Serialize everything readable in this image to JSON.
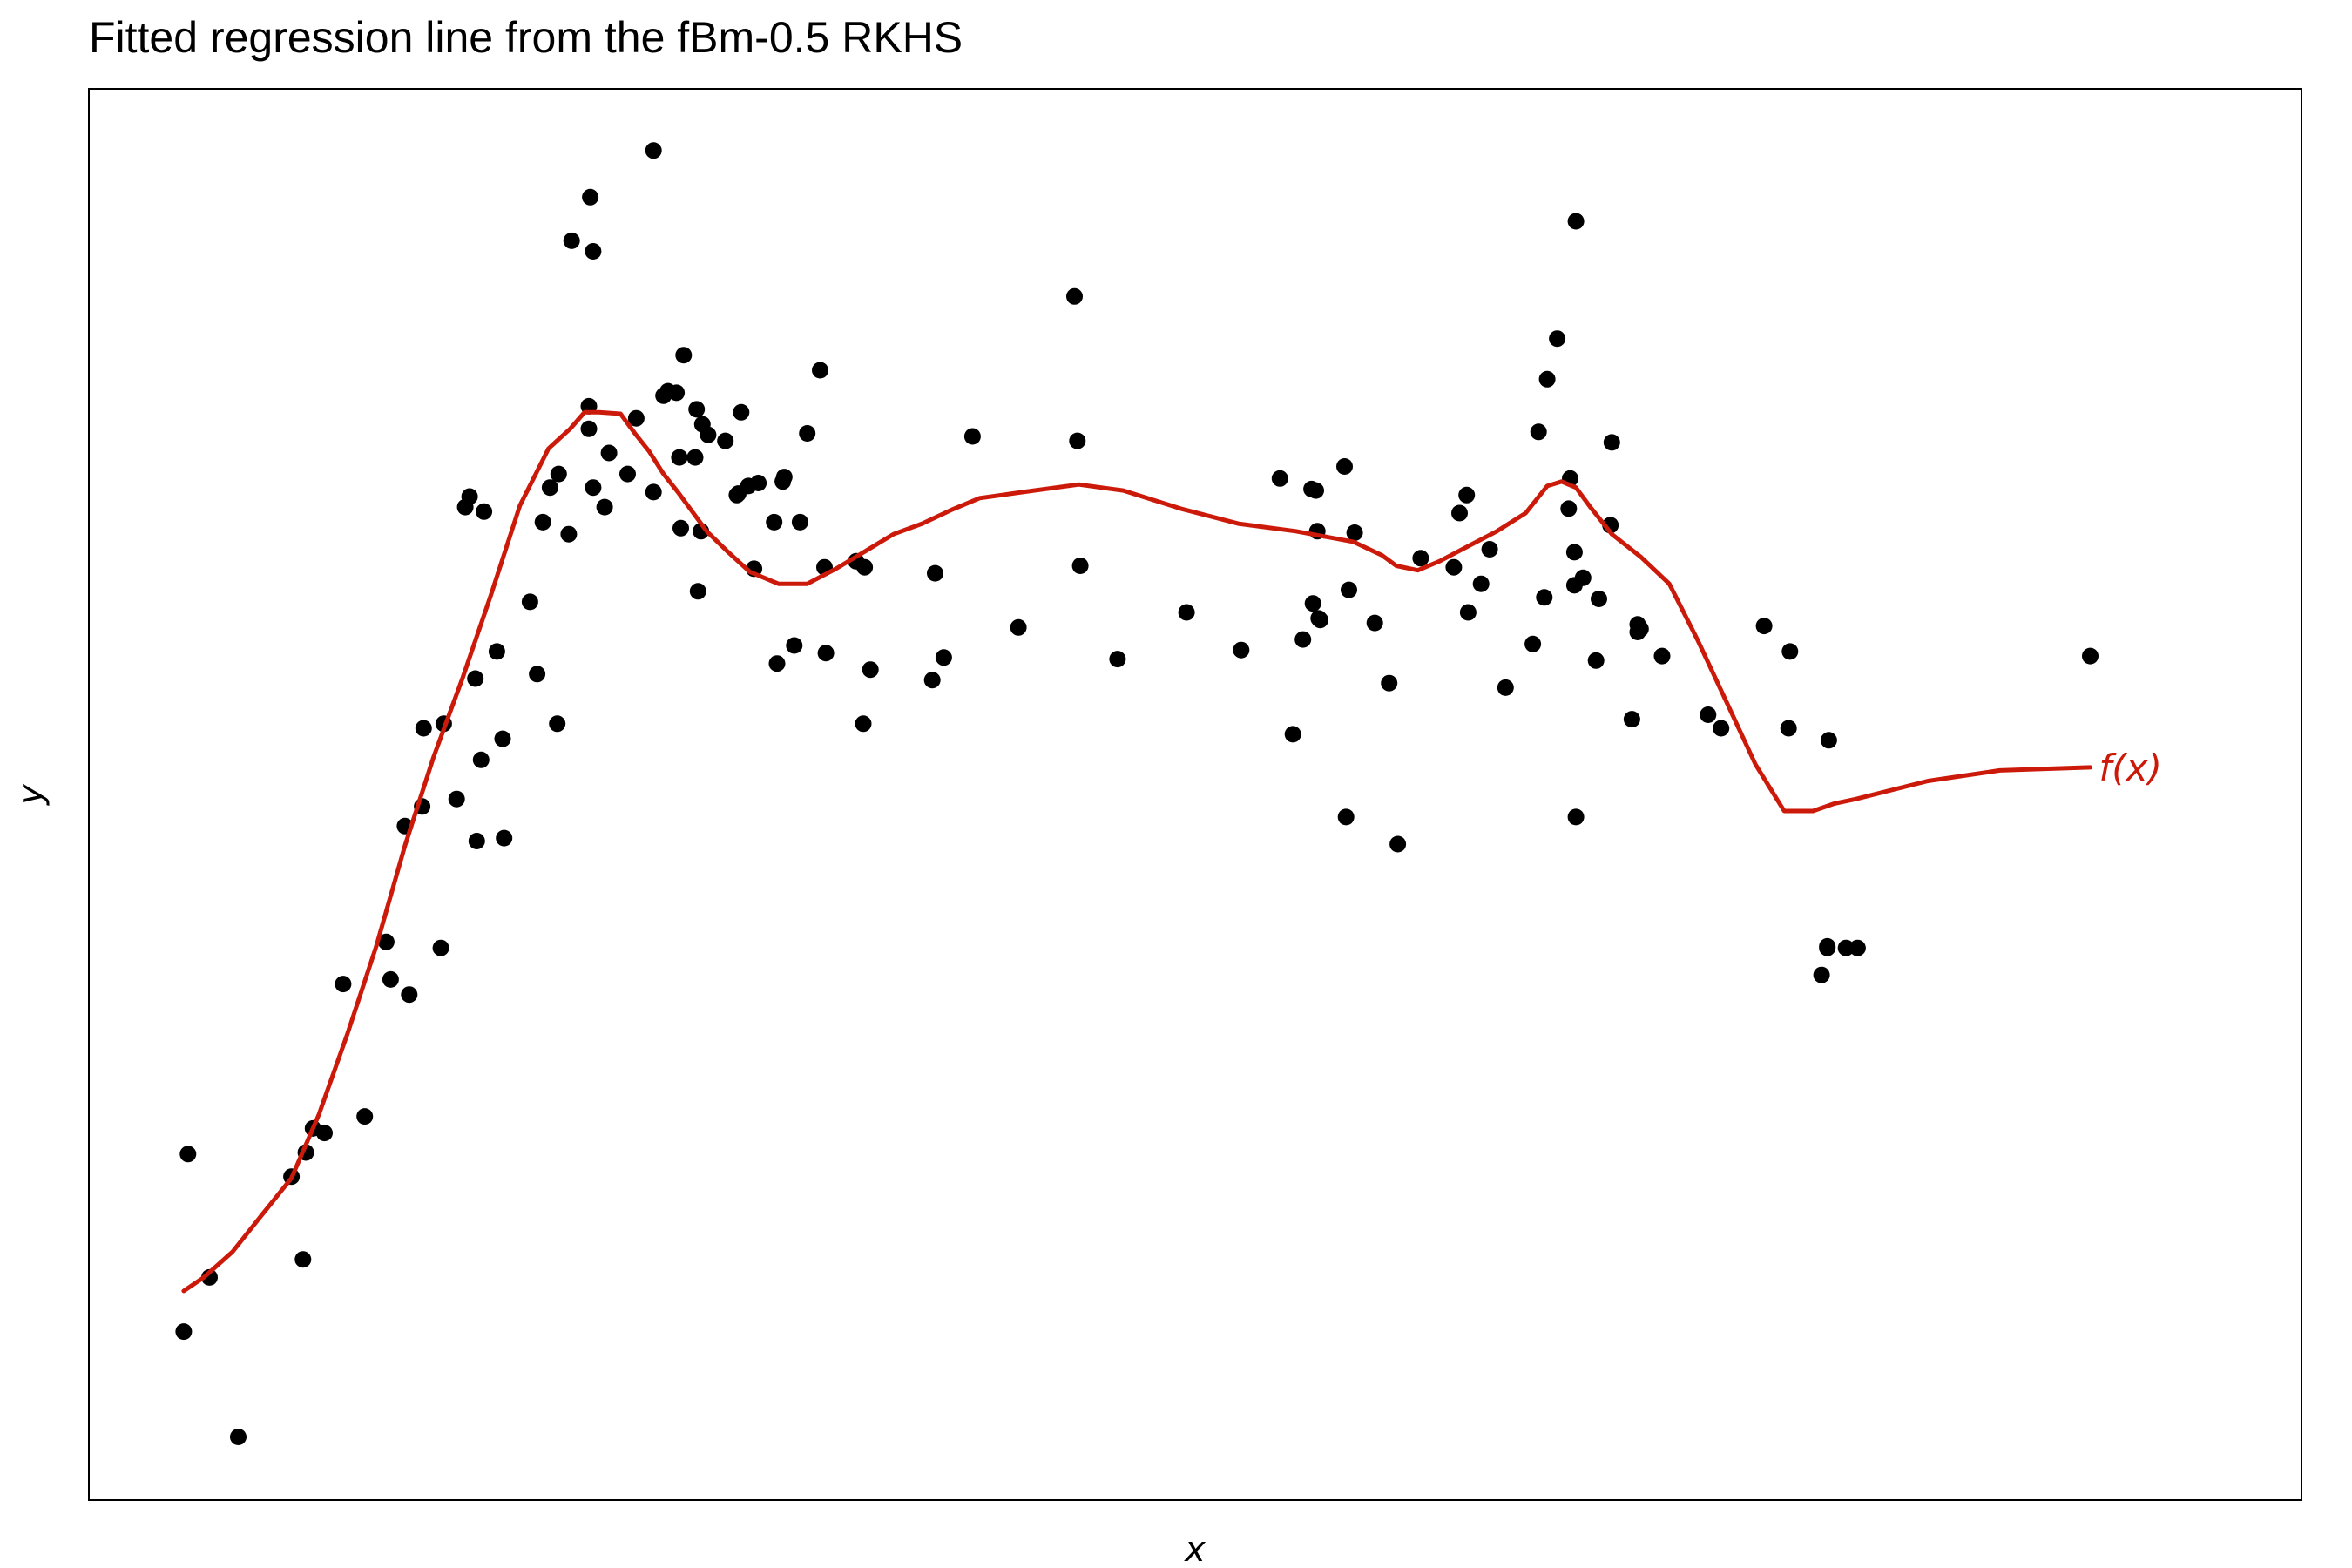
{
  "chart_data": {
    "type": "scatter",
    "title": "Fitted regression line from the fBm-0.5 RKHS",
    "xlabel": "x",
    "ylabel": "y",
    "xlim": [
      0,
      1540
    ],
    "ylim": [
      -938,
      0
    ],
    "grid": false,
    "axis_ticks": false,
    "colors": {
      "points": "#000000",
      "fit": "#cc1a0a",
      "frame": "#000000",
      "background": "#ffffff"
    },
    "points": [
      [
        66,
        -826
      ],
      [
        69,
        -708
      ],
      [
        84,
        -790
      ],
      [
        104,
        -896
      ],
      [
        141,
        -723
      ],
      [
        149,
        -778
      ],
      [
        151,
        -707
      ],
      [
        156,
        -691
      ],
      [
        164,
        -694
      ],
      [
        177,
        -595
      ],
      [
        192,
        -683
      ],
      [
        207,
        -567
      ],
      [
        210,
        -592
      ],
      [
        220,
        -490
      ],
      [
        223,
        -602
      ],
      [
        232,
        -477
      ],
      [
        233,
        -425
      ],
      [
        245,
        -571
      ],
      [
        247,
        -422
      ],
      [
        256,
        -472
      ],
      [
        262,
        -278
      ],
      [
        265,
        -271
      ],
      [
        269,
        -392
      ],
      [
        270,
        -500
      ],
      [
        273,
        -446
      ],
      [
        275,
        -281
      ],
      [
        284,
        -374
      ],
      [
        288,
        -432
      ],
      [
        289,
        -498
      ],
      [
        307,
        -341
      ],
      [
        312,
        -389
      ],
      [
        316,
        -288
      ],
      [
        321,
        -265
      ],
      [
        326,
        -422
      ],
      [
        327,
        -256
      ],
      [
        334,
        -296
      ],
      [
        336,
        -101
      ],
      [
        348,
        -211
      ],
      [
        348,
        -226
      ],
      [
        349,
        -72
      ],
      [
        351,
        -265
      ],
      [
        351,
        -108
      ],
      [
        359,
        -278
      ],
      [
        362,
        -242
      ],
      [
        375,
        -256
      ],
      [
        381,
        -219
      ],
      [
        393,
        -268
      ],
      [
        393,
        -41
      ],
      [
        400,
        -204
      ],
      [
        403,
        -201
      ],
      [
        409,
        -202
      ],
      [
        411,
        -245
      ],
      [
        412,
        -292
      ],
      [
        414,
        -177
      ],
      [
        423,
        -213
      ],
      [
        422,
        -245
      ],
      [
        424,
        -334
      ],
      [
        426,
        -294
      ],
      [
        427,
        -223
      ],
      [
        431,
        -230
      ],
      [
        443,
        -234
      ],
      [
        451,
        -270
      ],
      [
        452,
        -269
      ],
      [
        454,
        -215
      ],
      [
        459,
        -264
      ],
      [
        463,
        -319
      ],
      [
        466,
        -262
      ],
      [
        477,
        -288
      ],
      [
        479,
        -382
      ],
      [
        483,
        -261
      ],
      [
        484,
        -258
      ],
      [
        491,
        -370
      ],
      [
        495,
        -288
      ],
      [
        500,
        -229
      ],
      [
        509,
        -187
      ],
      [
        512,
        -318
      ],
      [
        513,
        -375
      ],
      [
        534,
        -314
      ],
      [
        540,
        -318
      ],
      [
        539,
        -422
      ],
      [
        544,
        -386
      ],
      [
        587,
        -393
      ],
      [
        589,
        -322
      ],
      [
        595,
        -378
      ],
      [
        615,
        -231
      ],
      [
        647,
        -358
      ],
      [
        686,
        -138
      ],
      [
        688,
        -234
      ],
      [
        690,
        -317
      ],
      [
        716,
        -379
      ],
      [
        764,
        -348
      ],
      [
        802,
        -373
      ],
      [
        829,
        -259
      ],
      [
        838,
        -429
      ],
      [
        845,
        -366
      ],
      [
        851,
        -266
      ],
      [
        852,
        -342
      ],
      [
        854,
        -267
      ],
      [
        855,
        -294
      ],
      [
        856,
        -352
      ],
      [
        857,
        -353
      ],
      [
        874,
        -251
      ],
      [
        875,
        -484
      ],
      [
        877,
        -333
      ],
      [
        881,
        -295
      ],
      [
        895,
        -355
      ],
      [
        905,
        -395
      ],
      [
        911,
        -502
      ],
      [
        927,
        -312
      ],
      [
        950,
        -318
      ],
      [
        954,
        -282
      ],
      [
        959,
        -270
      ],
      [
        960,
        -348
      ],
      [
        969,
        -329
      ],
      [
        975,
        -306
      ],
      [
        986,
        -398
      ],
      [
        1005,
        -369
      ],
      [
        1009,
        -228
      ],
      [
        1013,
        -338
      ],
      [
        1015,
        -193
      ],
      [
        1022,
        -166
      ],
      [
        1030,
        -279
      ],
      [
        1031,
        -259
      ],
      [
        1034,
        -308
      ],
      [
        1034,
        -330
      ],
      [
        1035,
        -88
      ],
      [
        1035,
        -484
      ],
      [
        1040,
        -325
      ],
      [
        1049,
        -380
      ],
      [
        1051,
        -339
      ],
      [
        1059,
        -290
      ],
      [
        1060,
        -235
      ],
      [
        1074,
        -419
      ],
      [
        1078,
        -356
      ],
      [
        1078,
        -361
      ],
      [
        1080,
        -359
      ],
      [
        1095,
        -377
      ],
      [
        1127,
        -416
      ],
      [
        1136,
        -425
      ],
      [
        1166,
        -357
      ],
      [
        1184,
        -374
      ],
      [
        1183,
        -425
      ],
      [
        1206,
        -589
      ],
      [
        1210,
        -570
      ],
      [
        1210,
        -571
      ],
      [
        1211,
        -433
      ],
      [
        1223,
        -571
      ],
      [
        1231,
        -571
      ],
      [
        1393,
        -377
      ]
    ],
    "fit": {
      "name": "f(x)",
      "x": [
        66,
        80,
        100,
        120,
        141,
        160,
        180,
        200,
        220,
        240,
        260,
        280,
        300,
        320,
        335,
        345,
        355,
        370,
        380,
        390,
        400,
        410,
        420,
        430,
        445,
        460,
        480,
        500,
        520,
        541,
        560,
        580,
        600,
        620,
        650,
        689,
        720,
        760,
        800,
        840,
        880,
        900,
        910,
        925,
        940,
        960,
        980,
        1000,
        1015,
        1025,
        1035,
        1045,
        1060,
        1080,
        1100,
        1120,
        1140,
        1160,
        1180,
        1200,
        1215,
        1230,
        1280,
        1330,
        1393
      ],
      "y": [
        -799,
        -790,
        -773,
        -749,
        -724,
        -682,
        -628,
        -570,
        -503,
        -444,
        -392,
        -336,
        -277,
        -239,
        -226,
        -215,
        -215,
        -216,
        -229,
        -241,
        -256,
        -268,
        -281,
        -294,
        -308,
        -321,
        -329,
        -329,
        -319,
        -307,
        -296,
        -289,
        -280,
        -272,
        -268,
        -263,
        -267,
        -279,
        -289,
        -294,
        -301,
        -310,
        -317,
        -320,
        -314,
        -304,
        -294,
        -282,
        -264,
        -261,
        -265,
        -278,
        -296,
        -311,
        -329,
        -367,
        -408,
        -449,
        -480,
        -480,
        -475,
        -472,
        -460,
        -453,
        -451
      ]
    }
  }
}
